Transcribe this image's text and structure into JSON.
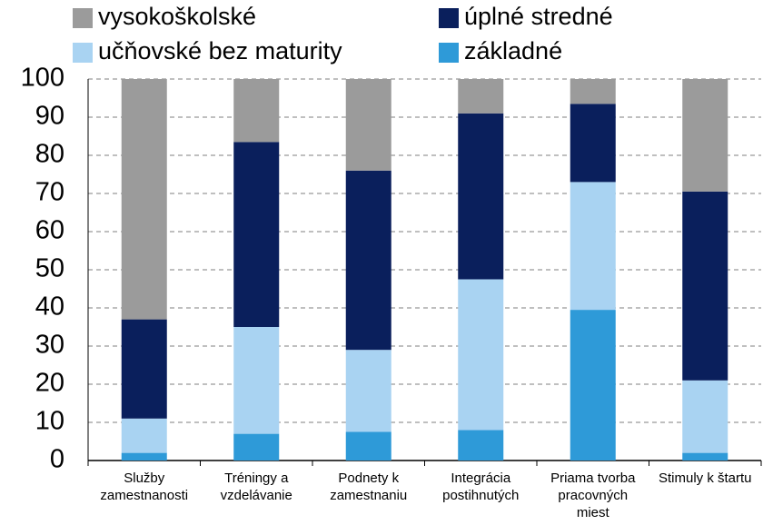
{
  "chart_data": {
    "type": "stacked-bar",
    "categories": [
      "Služby\nzamestnanosti",
      "Tréningy a\nvzdelávanie",
      "Podnety k\nzamestnaniu",
      "Integrácia\npostihnutých",
      "Priama tvorba\npracovných\nmiest",
      "Stimuly k štartu"
    ],
    "series": [
      {
        "name": "základné",
        "color": "#2e9ad8",
        "values": [
          2,
          7,
          7.5,
          8,
          39.5,
          2
        ]
      },
      {
        "name": "učňovské bez maturity",
        "color": "#a9d3f2",
        "values": [
          9,
          28,
          21.5,
          39.5,
          33.5,
          19
        ]
      },
      {
        "name": "úplné stredné",
        "color": "#0a1f5c",
        "values": [
          26,
          48.5,
          47,
          43.5,
          20.5,
          49.5
        ]
      },
      {
        "name": "vysokoškolské",
        "color": "#9b9b9b",
        "values": [
          63,
          16.5,
          24,
          9,
          6.5,
          29.5
        ]
      }
    ],
    "ylim": [
      0,
      100
    ],
    "yticks": [
      0,
      10,
      20,
      30,
      40,
      50,
      60,
      70,
      80,
      90,
      100
    ],
    "grid": true
  }
}
